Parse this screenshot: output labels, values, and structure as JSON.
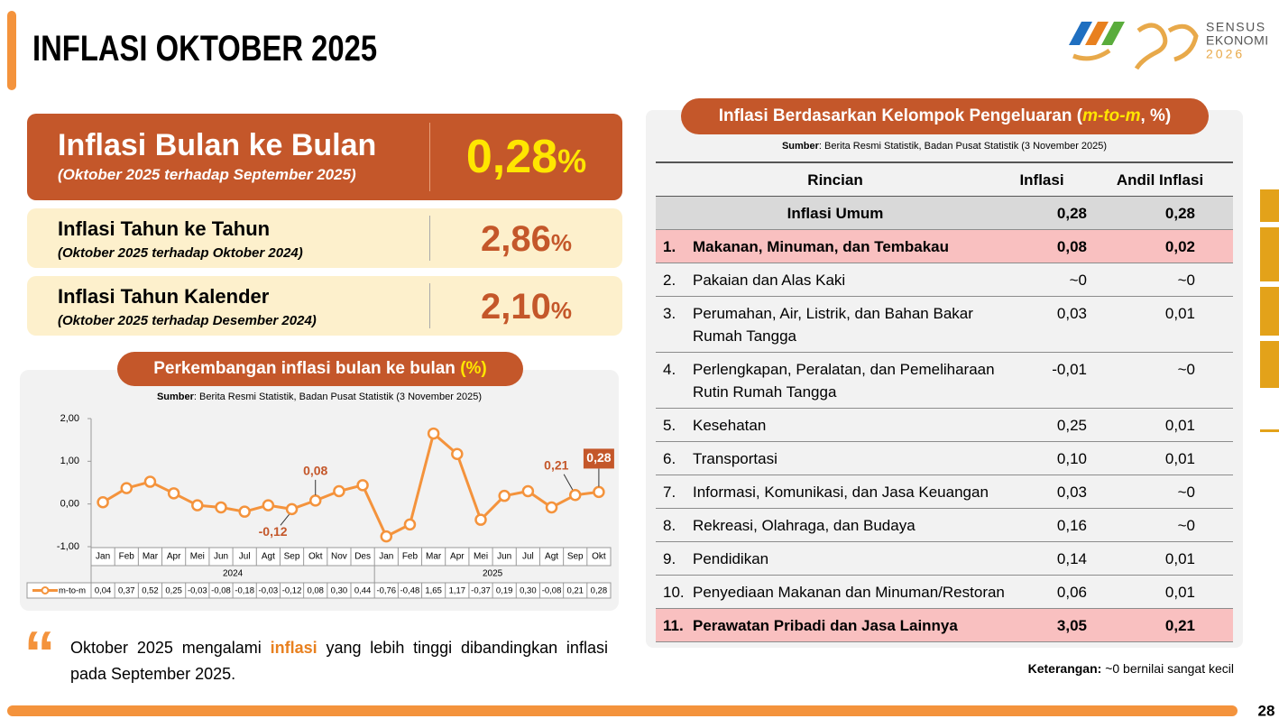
{
  "header": {
    "title": "INFLASI OKTOBER 2025",
    "logo_text": [
      "SENSUS",
      "EKONOMI",
      "2026"
    ]
  },
  "highlights": [
    {
      "title": "Inflasi Bulan ke Bulan",
      "subtitle": "(Oktober 2025 terhadap September 2025)",
      "value": "0,28",
      "unit": "%"
    },
    {
      "title": "Inflasi Tahun ke Tahun",
      "subtitle": "(Oktober 2025 terhadap Oktober 2024)",
      "value": "2,86",
      "unit": "%"
    },
    {
      "title": "Inflasi Tahun Kalender",
      "subtitle": "(Oktober 2025 terhadap Desember 2024)",
      "value": "2,10",
      "unit": "%"
    }
  ],
  "chart_data": {
    "type": "line",
    "title": "Perkembangan inflasi bulan ke bulan",
    "title_unit": "(%)",
    "source_label": "Sumber",
    "source_text": ": Berita Resmi Statistik, Badan Pusat Statistik (3 November 2025)",
    "categories": [
      "Jan",
      "Feb",
      "Mar",
      "Apr",
      "Mei",
      "Jun",
      "Jul",
      "Agt",
      "Sep",
      "Okt",
      "Nov",
      "Des",
      "Jan",
      "Feb",
      "Mar",
      "Apr",
      "Mei",
      "Jun",
      "Jul",
      "Agt",
      "Sep",
      "Okt"
    ],
    "year_labels": [
      "2024",
      "2025"
    ],
    "series": [
      {
        "name": "m-to-m",
        "color": "#f4933c",
        "values": [
          0.04,
          0.37,
          0.52,
          0.25,
          -0.03,
          -0.08,
          -0.18,
          -0.03,
          -0.12,
          0.08,
          0.3,
          0.44,
          -0.76,
          -0.48,
          1.65,
          1.17,
          -0.37,
          0.19,
          0.3,
          -0.08,
          0.21,
          0.28
        ],
        "value_labels": [
          "0,04",
          "0,37",
          "0,52",
          "0,25",
          "-0,03",
          "-0,08",
          "-0,18",
          "-0,03",
          "-0,12",
          "0,08",
          "0,30",
          "0,44",
          "-0,76",
          "-0,48",
          "1,65",
          "1,17",
          "-0,37",
          "0,19",
          "0,30",
          "-0,08",
          "0,21",
          "0,28"
        ],
        "point_labels": [
          null,
          null,
          null,
          null,
          null,
          null,
          null,
          null,
          "-0,12",
          "0,08",
          null,
          null,
          null,
          null,
          null,
          null,
          null,
          null,
          null,
          null,
          "0,21",
          "0,28"
        ]
      }
    ],
    "ylim": [
      -1,
      2
    ],
    "yticks": [
      {
        "value": -1,
        "label": "-1,00"
      },
      {
        "value": 0,
        "label": "0,00"
      },
      {
        "value": 1,
        "label": "1,00"
      },
      {
        "value": 2,
        "label": "2,00"
      }
    ]
  },
  "table": {
    "title": "Inflasi Berdasarkan Kelompok Pengeluaran (",
    "title_em": "m-to-m",
    "title_end": ", %)",
    "source_label": "Sumber",
    "source_text": ": Berita Resmi Statistik, Badan Pusat Statistik (3 November 2025)",
    "columns": [
      "Rincian",
      "Inflasi",
      "Andil Inflasi"
    ],
    "rows": [
      {
        "label": "Inflasi Umum",
        "inflasi": "0,28",
        "andil": "0,28",
        "style": "total"
      },
      {
        "no": "1.",
        "label": "Makanan, Minuman, dan Tembakau",
        "inflasi": "0,08",
        "andil": "0,02",
        "style": "highlight"
      },
      {
        "no": "2.",
        "label": "Pakaian dan Alas Kaki",
        "inflasi": "~0",
        "andil": "~0"
      },
      {
        "no": "3.",
        "label": "Perumahan, Air, Listrik, dan Bahan Bakar Rumah Tangga",
        "inflasi": "0,03",
        "andil": "0,01"
      },
      {
        "no": "4.",
        "label": "Perlengkapan, Peralatan, dan Pemeliharaan Rutin Rumah Tangga",
        "inflasi": "-0,01",
        "andil": "~0"
      },
      {
        "no": "5.",
        "label": "Kesehatan",
        "inflasi": "0,25",
        "andil": "0,01"
      },
      {
        "no": "6.",
        "label": "Transportasi",
        "inflasi": "0,10",
        "andil": "0,01"
      },
      {
        "no": "7.",
        "label": "Informasi, Komunikasi, dan Jasa Keuangan",
        "inflasi": "0,03",
        "andil": "~0"
      },
      {
        "no": "8.",
        "label": "Rekreasi, Olahraga, dan Budaya",
        "inflasi": "0,16",
        "andil": "~0"
      },
      {
        "no": "9.",
        "label": "Pendidikan",
        "inflasi": "0,14",
        "andil": "0,01"
      },
      {
        "no": "10.",
        "label": "Penyediaan Makanan dan Minuman/Restoran",
        "inflasi": "0,06",
        "andil": "0,01"
      },
      {
        "no": "11.",
        "label": "Perawatan Pribadi dan Jasa Lainnya",
        "inflasi": "3,05",
        "andil": "0,21",
        "style": "highlight"
      }
    ]
  },
  "note": {
    "label": "Keterangan:",
    "text": "~0 bernilai sangat kecil"
  },
  "quote": {
    "before": "Oktober 2025 mengalami",
    "emphasis": "inflasi",
    "after": "yang lebih tinggi dibandingkan inflasi pada September 2025."
  },
  "page_number": "28"
}
